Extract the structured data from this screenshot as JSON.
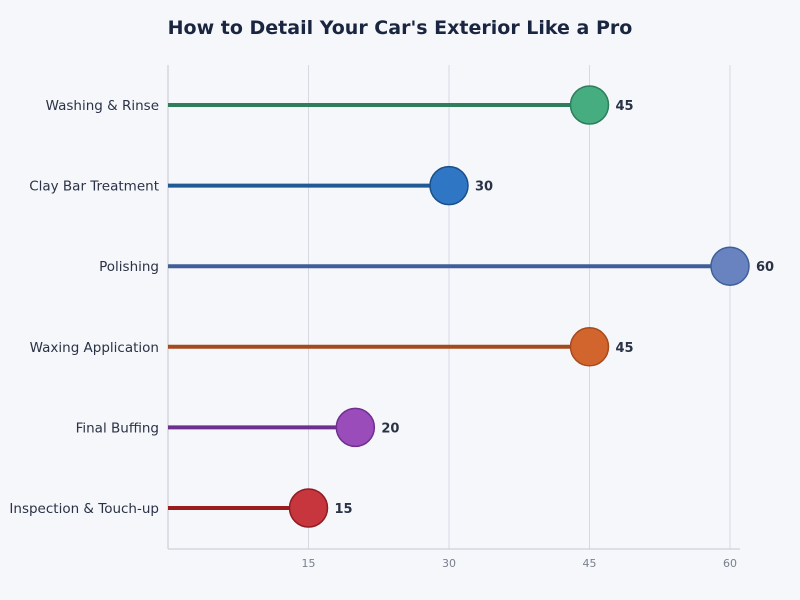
{
  "chart_data": {
    "type": "lollipop",
    "title": "How to Detail Your Car's Exterior Like a Pro",
    "xlabel": "",
    "ylabel": "",
    "xlim": [
      0,
      60
    ],
    "xticks": [
      15,
      30,
      45,
      60
    ],
    "grid": true,
    "categories": [
      "Washing & Rinse",
      "Clay Bar Treatment",
      "Polishing",
      "Waxing Application",
      "Final Buffing",
      "Inspection & Touch-up"
    ],
    "values": [
      45,
      30,
      60,
      45,
      20,
      15
    ],
    "line_colors": [
      "#2e7d5b",
      "#1f5a96",
      "#3f5f98",
      "#a54a1c",
      "#6f2f8f",
      "#9b1c1f"
    ],
    "marker_colors": [
      "#45ad7f",
      "#2f76c4",
      "#6883c0",
      "#d2652d",
      "#9b4cbb",
      "#c7363c"
    ],
    "marker_edge_colors": [
      "#2e7d5b",
      "#1b4f8a",
      "#3f5f98",
      "#a54a1c",
      "#6f2f8f",
      "#8f1c22"
    ]
  }
}
